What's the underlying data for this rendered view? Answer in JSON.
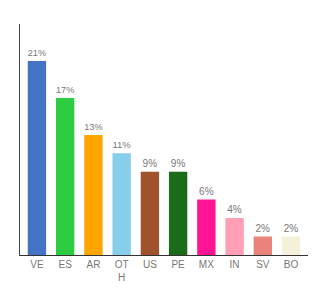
{
  "chart_data": {
    "type": "bar",
    "categories": [
      "VE",
      "ES",
      "AR",
      "OT\nH",
      "US",
      "PE",
      "MX",
      "IN",
      "SV",
      "BO"
    ],
    "values": [
      21,
      17,
      13,
      11,
      9,
      9,
      6,
      4,
      2,
      2
    ],
    "value_labels": [
      "21%",
      "17%",
      "13%",
      "11%",
      "9%",
      "9%",
      "6%",
      "4%",
      "2%",
      "2%"
    ],
    "colors": [
      "#4472c4",
      "#2ecc40",
      "#ffa500",
      "#87ceeb",
      "#a0522d",
      "#1a6b1a",
      "#ff1493",
      "#ff9eb5",
      "#e8827a",
      "#f5f0d8"
    ],
    "ylim": [
      0,
      25
    ],
    "data_labels": true,
    "tick_labels": "x",
    "grid": false
  }
}
